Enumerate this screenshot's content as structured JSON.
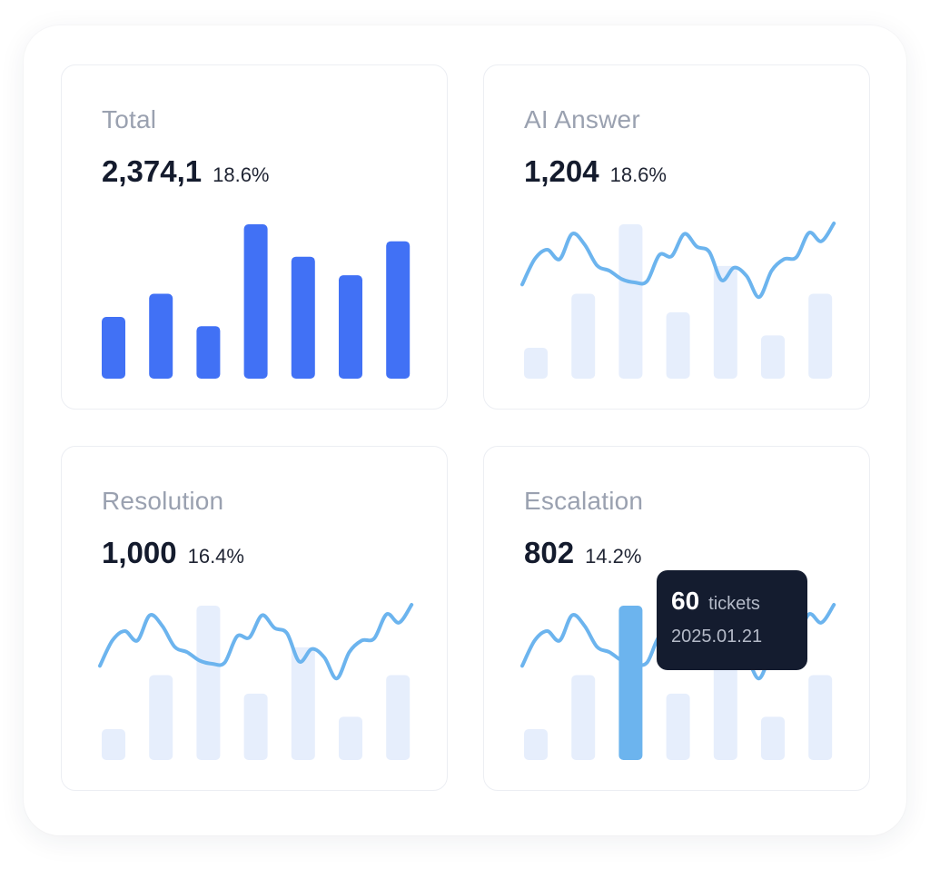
{
  "colors": {
    "bar_solid": "#4171f5",
    "bar_faded": "#e6eefc",
    "line": "#6cb4ee",
    "bar_highlight": "#6cb4ee"
  },
  "cards": [
    {
      "id": "total",
      "title": "Total",
      "value": "2,374,1",
      "change": "18.6%",
      "chart_data": {
        "type": "bar",
        "values": [
          40,
          55,
          34,
          100,
          79,
          67,
          89
        ],
        "ylim": [
          0,
          100
        ],
        "style": "solid"
      }
    },
    {
      "id": "ai",
      "title": "AI Answer",
      "value": "1,204",
      "change": "18.6%",
      "chart_data": {
        "type": "bar",
        "values": [
          20,
          55,
          100,
          43,
          73,
          28,
          55
        ],
        "ylim": [
          0,
          100
        ],
        "style": "faded",
        "line": [
          42,
          66,
          75,
          66,
          90,
          80,
          60,
          55,
          47,
          44,
          45,
          70,
          69,
          90,
          78,
          73,
          46,
          58,
          50,
          30,
          55,
          66,
          68,
          91,
          83,
          100
        ]
      }
    },
    {
      "id": "resolution",
      "title": "Resolution",
      "value": "1,000",
      "change": "16.4%",
      "chart_data": {
        "type": "bar",
        "values": [
          20,
          55,
          100,
          43,
          73,
          28,
          55
        ],
        "ylim": [
          0,
          100
        ],
        "style": "faded",
        "line": [
          42,
          66,
          75,
          66,
          90,
          80,
          60,
          55,
          47,
          44,
          45,
          70,
          69,
          90,
          78,
          73,
          46,
          58,
          50,
          30,
          55,
          66,
          68,
          91,
          83,
          100
        ]
      }
    },
    {
      "id": "escalation",
      "title": "Escalation",
      "value": "802",
      "change": "14.2%",
      "chart_data": {
        "type": "bar",
        "values": [
          20,
          55,
          100,
          43,
          73,
          28,
          55
        ],
        "ylim": [
          0,
          100
        ],
        "style": "faded",
        "highlight_index": 2,
        "line": [
          42,
          66,
          75,
          66,
          90,
          80,
          60,
          55,
          47,
          44,
          45,
          70,
          69,
          90,
          78,
          73,
          46,
          58,
          50,
          30,
          55,
          66,
          68,
          91,
          83,
          100
        ]
      },
      "tooltip": {
        "count": "60",
        "unit": "tickets",
        "date": "2025.01.21"
      }
    }
  ]
}
